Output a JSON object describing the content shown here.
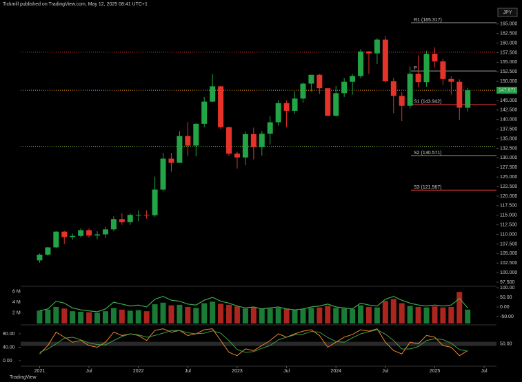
{
  "chart_data": {
    "type": "candlestick",
    "header": "Tickmill published on TradingView.com, May 12, 2025 08:41 UTC+1",
    "currency": "JPY",
    "footer": "TradingView",
    "x": [
      "2021-01",
      "2021-02",
      "2021-03",
      "2021-04",
      "2021-05",
      "2021-06",
      "2021-07",
      "2021-08",
      "2021-09",
      "2021-10",
      "2021-11",
      "2021-12",
      "2022-01",
      "2022-02",
      "2022-03",
      "2022-04",
      "2022-05",
      "2022-06",
      "2022-07",
      "2022-08",
      "2022-09",
      "2022-10",
      "2022-11",
      "2022-12",
      "2023-01",
      "2023-02",
      "2023-03",
      "2023-04",
      "2023-05",
      "2023-06",
      "2023-07",
      "2023-08",
      "2023-09",
      "2023-10",
      "2023-11",
      "2023-12",
      "2024-01",
      "2024-02",
      "2024-03",
      "2024-04",
      "2024-05",
      "2024-06",
      "2024-07",
      "2024-08",
      "2024-09",
      "2024-10",
      "2024-11",
      "2024-12",
      "2025-01",
      "2025-02",
      "2025-03",
      "2025-04",
      "2025-05"
    ],
    "xticks": [
      {
        "value": 0,
        "label": "2021"
      },
      {
        "value": 6,
        "label": "Jul"
      },
      {
        "value": 12,
        "label": "2022"
      },
      {
        "value": 18,
        "label": "Jul"
      },
      {
        "value": 24,
        "label": "2023"
      },
      {
        "value": 30,
        "label": "Jul"
      },
      {
        "value": 36,
        "label": "2024"
      },
      {
        "value": 42,
        "label": "Jul"
      },
      {
        "value": 48,
        "label": "2025"
      },
      {
        "value": 54,
        "label": "Jul"
      }
    ],
    "xlim": [
      -2.3,
      55.5
    ],
    "open": [
      103.2,
      104.7,
      106.6,
      110.7,
      109.3,
      109.6,
      111.1,
      109.7,
      110.0,
      111.3,
      114.0,
      113.2,
      115.1,
      115.1,
      115.0,
      121.7,
      129.8,
      128.7,
      135.7,
      133.2,
      138.9,
      144.7,
      148.7,
      138.0,
      131.1,
      130.1,
      136.2,
      132.8,
      136.3,
      139.3,
      144.3,
      142.3,
      145.5,
      149.4,
      151.7,
      148.2,
      141.0,
      146.9,
      149.9,
      151.4,
      157.8,
      157.3,
      160.9,
      150.0,
      146.2,
      143.6,
      152.0,
      149.8,
      157.2,
      155.2,
      150.6,
      149.9,
      143.1
    ],
    "high": [
      105.0,
      106.7,
      110.9,
      110.9,
      110.2,
      111.6,
      111.6,
      110.8,
      112.0,
      114.7,
      115.5,
      115.5,
      116.3,
      116.3,
      125.1,
      131.3,
      131.3,
      137.0,
      139.4,
      139.1,
      145.9,
      151.9,
      148.8,
      138.2,
      131.6,
      136.9,
      137.9,
      137.0,
      140.9,
      145.1,
      145.0,
      147.4,
      149.7,
      151.7,
      151.9,
      148.0,
      148.8,
      150.9,
      151.9,
      158.4,
      157.9,
      161.3,
      161.9,
      150.9,
      147.2,
      153.9,
      156.8,
      158.0,
      158.9,
      155.9,
      151.3,
      150.5,
      148.3
    ],
    "low": [
      102.6,
      104.4,
      106.4,
      107.5,
      108.6,
      109.2,
      109.1,
      108.7,
      109.1,
      110.8,
      112.5,
      112.5,
      113.5,
      114.1,
      114.6,
      121.3,
      126.4,
      128.7,
      130.4,
      130.4,
      138.0,
      144.6,
      137.5,
      130.5,
      127.2,
      128.1,
      129.6,
      130.6,
      133.5,
      138.4,
      138.0,
      141.5,
      144.4,
      147.3,
      146.7,
      140.9,
      140.8,
      145.9,
      146.5,
      150.8,
      151.9,
      154.5,
      149.7,
      141.7,
      139.6,
      142.9,
      148.4,
      148.6,
      153.7,
      149.1,
      146.5,
      139.9,
      142.1
    ],
    "close": [
      104.7,
      106.6,
      110.7,
      109.3,
      109.6,
      111.1,
      109.7,
      110.0,
      111.3,
      114.0,
      113.2,
      115.1,
      115.1,
      115.0,
      121.7,
      129.8,
      128.7,
      135.7,
      133.2,
      138.9,
      144.7,
      148.7,
      138.0,
      131.1,
      130.1,
      136.2,
      132.8,
      136.3,
      139.3,
      144.3,
      142.3,
      145.5,
      149.4,
      151.7,
      148.2,
      141.0,
      146.9,
      149.9,
      151.4,
      157.8,
      157.3,
      160.9,
      150.0,
      146.2,
      143.6,
      152.0,
      149.8,
      157.2,
      155.2,
      150.6,
      149.9,
      143.1,
      147.67
    ],
    "up_color": "#22a447",
    "down_color": "#e5332a",
    "ylim": [
      96.6,
      169.1
    ],
    "yticks": [
      {
        "value": 97.5,
        "label": "97.500"
      },
      {
        "value": 100,
        "label": "100.000"
      },
      {
        "value": 102.5,
        "label": "102.500"
      },
      {
        "value": 105,
        "label": "105.000"
      },
      {
        "value": 107.5,
        "label": "107.500"
      },
      {
        "value": 110,
        "label": "110.000"
      },
      {
        "value": 112.5,
        "label": "112.500"
      },
      {
        "value": 115,
        "label": "115.000"
      },
      {
        "value": 117.5,
        "label": "117.500"
      },
      {
        "value": 120,
        "label": "120.000"
      },
      {
        "value": 122.5,
        "label": "122.500"
      },
      {
        "value": 125,
        "label": "125.000"
      },
      {
        "value": 127.5,
        "label": "127.500"
      },
      {
        "value": 130,
        "label": "130.000"
      },
      {
        "value": 132.5,
        "label": "132.500"
      },
      {
        "value": 135,
        "label": "135.000"
      },
      {
        "value": 137.5,
        "label": "137.500"
      },
      {
        "value": 140,
        "label": "140.000"
      },
      {
        "value": 142.5,
        "label": "142.500"
      },
      {
        "value": 145,
        "label": "145.000"
      },
      {
        "value": 147.5,
        "label": "147.500"
      },
      {
        "value": 150,
        "label": "150.000"
      },
      {
        "value": 152.5,
        "label": "152.500"
      },
      {
        "value": 155,
        "label": "155.000"
      },
      {
        "value": 157.5,
        "label": "157.500"
      },
      {
        "value": 160,
        "label": "160.000"
      },
      {
        "value": 162.5,
        "label": "162.500"
      },
      {
        "value": 165,
        "label": "165.000"
      }
    ],
    "last_price": 147.671,
    "levels": [
      {
        "label": "R1 (165.317)",
        "value": 165.317,
        "color": "#9e9e9e"
      },
      {
        "label": "P",
        "value": 152.7,
        "color": "#9e9e9e"
      },
      {
        "label": "S1 (143.942)",
        "value": 143.942,
        "color": "#e53935"
      },
      {
        "label": "S2 (130.571)",
        "value": 130.571,
        "color": "#9e9e9e"
      },
      {
        "label": "S3 (121.567)",
        "value": 121.567,
        "color": "#e53935"
      }
    ],
    "hlines": [
      {
        "value": 157.6,
        "color": "#e53935"
      },
      {
        "value": 147.671,
        "color": "#f2a40c"
      },
      {
        "value": 133.0,
        "color": "#8bc34a"
      }
    ],
    "volume": {
      "values": [
        2.4,
        2.6,
        3.1,
        2.8,
        2.3,
        2.2,
        2.1,
        2.0,
        2.3,
        2.9,
        2.6,
        2.4,
        2.5,
        2.3,
        3.6,
        3.9,
        3.4,
        3.5,
        3.1,
        2.9,
        3.8,
        4.1,
        3.7,
        3.5,
        3.2,
        2.8,
        3.0,
        2.7,
        2.8,
        2.9,
        2.8,
        2.6,
        2.7,
        2.9,
        3.0,
        3.3,
        2.9,
        2.8,
        2.7,
        3.4,
        3.1,
        3.0,
        4.2,
        4.6,
        3.8,
        3.3,
        3.1,
        3.0,
        3.2,
        3.0,
        3.1,
        5.9,
        2.6
      ],
      "ylim": [
        0,
        6.7
      ],
      "yticks": [
        {
          "value": 2,
          "label": "2 M"
        },
        {
          "value": 4,
          "label": "4 M"
        },
        {
          "value": 6,
          "label": "6 M"
        }
      ],
      "oscillator": {
        "values": [
          -20,
          -10,
          30,
          20,
          -5,
          -15,
          -20,
          -25,
          -10,
          25,
          15,
          5,
          10,
          0,
          40,
          55,
          35,
          30,
          15,
          10,
          35,
          50,
          30,
          20,
          5,
          -5,
          0,
          -10,
          -5,
          0,
          -10,
          -15,
          -10,
          0,
          5,
          15,
          0,
          -5,
          -10,
          20,
          10,
          5,
          40,
          55,
          35,
          20,
          10,
          5,
          10,
          5,
          10,
          45,
          -5
        ],
        "color": "#3fae4a",
        "ylim": [
          -85.7,
          100
        ],
        "yticks": [
          {
            "value": 100,
            "label": "100.00"
          },
          {
            "value": 50,
            "label": "50.00"
          },
          {
            "value": 0,
            "label": "0.00"
          },
          {
            "value": -50,
            "label": "-50.00"
          }
        ]
      }
    },
    "stochastic": {
      "ylim": [
        -16.4,
        100.5
      ],
      "yticks": [
        {
          "value": 0,
          "label": "0.00"
        },
        {
          "value": 40,
          "label": "40.00"
        },
        {
          "value": 80,
          "label": "80.00"
        }
      ],
      "y2ticks": [
        {
          "value": 50,
          "label": "50.00"
        }
      ],
      "series": [
        {
          "color": "#f08a24",
          "values": [
            20,
            45,
            85,
            70,
            55,
            60,
            45,
            40,
            55,
            85,
            75,
            80,
            75,
            60,
            90,
            95,
            85,
            90,
            75,
            80,
            92,
            95,
            60,
            25,
            15,
            35,
            30,
            45,
            60,
            80,
            70,
            80,
            88,
            92,
            75,
            40,
            55,
            70,
            78,
            92,
            88,
            95,
            55,
            30,
            20,
            55,
            50,
            75,
            70,
            45,
            40,
            15,
            30
          ]
        },
        {
          "color": "#43a047",
          "values": [
            25,
            35,
            50,
            67,
            70,
            62,
            53,
            48,
            47,
            60,
            72,
            80,
            77,
            70,
            75,
            82,
            90,
            90,
            83,
            80,
            82,
            89,
            82,
            60,
            33,
            25,
            27,
            37,
            45,
            62,
            70,
            77,
            79,
            87,
            85,
            69,
            57,
            55,
            68,
            80,
            86,
            92,
            79,
            60,
            35,
            35,
            42,
            60,
            65,
            63,
            52,
            33,
            28
          ]
        }
      ]
    }
  }
}
